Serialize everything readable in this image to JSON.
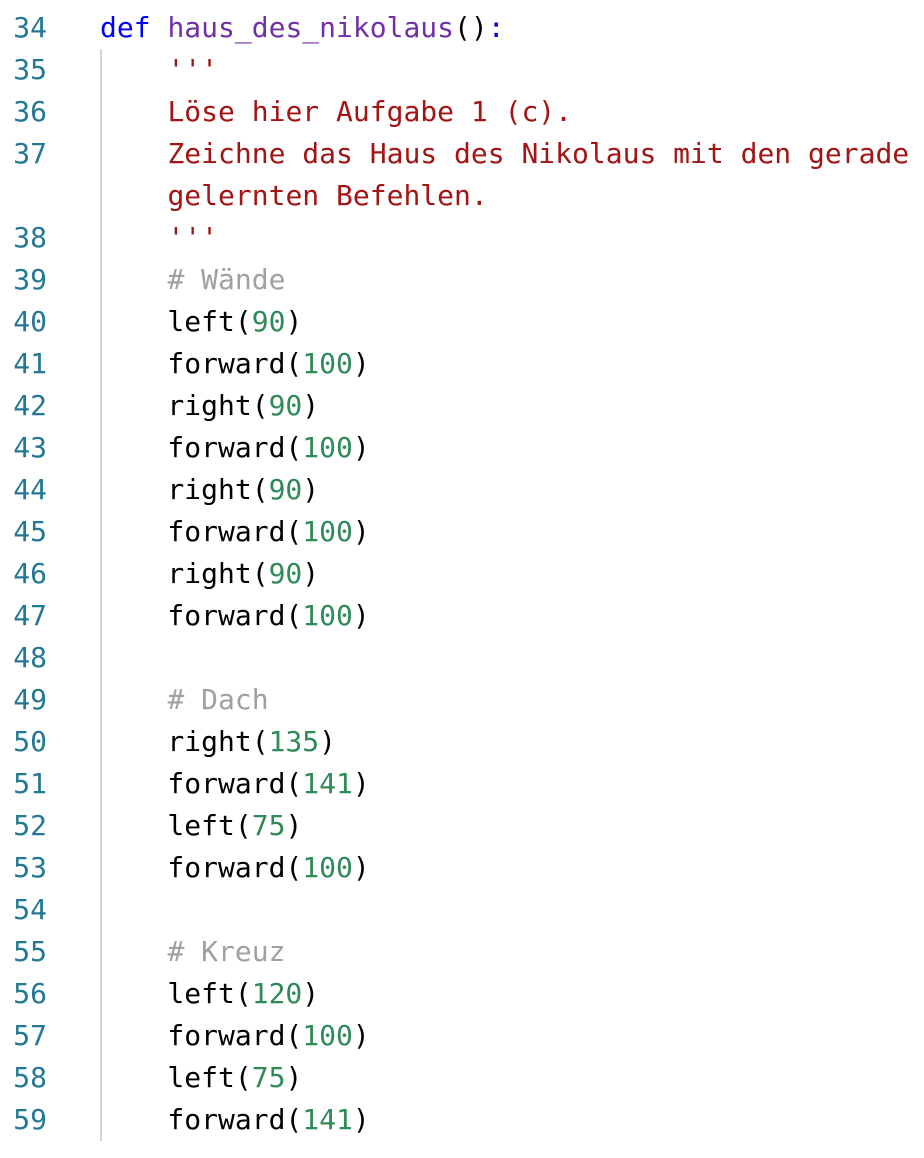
{
  "colors": {
    "keyword": "#0000ff",
    "function": "#7030a8",
    "string": "#a31515",
    "comment": "#a0a0a0",
    "number": "#2e8b57",
    "line_number": "#237893"
  },
  "lines": [
    {
      "num": "34",
      "tokens": [
        [
          "kw",
          "def"
        ],
        [
          "pl",
          " "
        ],
        [
          "fn",
          "haus_des_nikolaus"
        ],
        [
          "pl",
          "()"
        ],
        [
          "kw",
          ":"
        ]
      ]
    },
    {
      "num": "35",
      "tokens": [
        [
          "pl",
          "    "
        ],
        [
          "str",
          "'''"
        ]
      ]
    },
    {
      "num": "36",
      "tokens": [
        [
          "pl",
          "    "
        ],
        [
          "str",
          "Löse hier Aufgabe 1 (c)."
        ]
      ]
    },
    {
      "num": "37",
      "tokens": [
        [
          "pl",
          "    "
        ],
        [
          "str",
          "Zeichne das Haus des Nikolaus mit den gerade"
        ]
      ]
    },
    {
      "num": "",
      "tokens": [
        [
          "pl",
          "    "
        ],
        [
          "str",
          "gelernten Befehlen."
        ]
      ]
    },
    {
      "num": "38",
      "tokens": [
        [
          "pl",
          "    "
        ],
        [
          "str",
          "'''"
        ]
      ]
    },
    {
      "num": "39",
      "tokens": [
        [
          "pl",
          "    "
        ],
        [
          "cm",
          "# Wände"
        ]
      ]
    },
    {
      "num": "40",
      "tokens": [
        [
          "pl",
          "    left("
        ],
        [
          "num",
          "90"
        ],
        [
          "pl",
          ")"
        ]
      ]
    },
    {
      "num": "41",
      "tokens": [
        [
          "pl",
          "    forward("
        ],
        [
          "num",
          "100"
        ],
        [
          "pl",
          ")"
        ]
      ]
    },
    {
      "num": "42",
      "tokens": [
        [
          "pl",
          "    right("
        ],
        [
          "num",
          "90"
        ],
        [
          "pl",
          ")"
        ]
      ]
    },
    {
      "num": "43",
      "tokens": [
        [
          "pl",
          "    forward("
        ],
        [
          "num",
          "100"
        ],
        [
          "pl",
          ")"
        ]
      ]
    },
    {
      "num": "44",
      "tokens": [
        [
          "pl",
          "    right("
        ],
        [
          "num",
          "90"
        ],
        [
          "pl",
          ")"
        ]
      ]
    },
    {
      "num": "45",
      "tokens": [
        [
          "pl",
          "    forward("
        ],
        [
          "num",
          "100"
        ],
        [
          "pl",
          ")"
        ]
      ]
    },
    {
      "num": "46",
      "tokens": [
        [
          "pl",
          "    right("
        ],
        [
          "num",
          "90"
        ],
        [
          "pl",
          ")"
        ]
      ]
    },
    {
      "num": "47",
      "tokens": [
        [
          "pl",
          "    forward("
        ],
        [
          "num",
          "100"
        ],
        [
          "pl",
          ")"
        ]
      ]
    },
    {
      "num": "48",
      "tokens": []
    },
    {
      "num": "49",
      "tokens": [
        [
          "pl",
          "    "
        ],
        [
          "cm",
          "# Dach"
        ]
      ]
    },
    {
      "num": "50",
      "tokens": [
        [
          "pl",
          "    right("
        ],
        [
          "num",
          "135"
        ],
        [
          "pl",
          ")"
        ]
      ]
    },
    {
      "num": "51",
      "tokens": [
        [
          "pl",
          "    forward("
        ],
        [
          "num",
          "141"
        ],
        [
          "pl",
          ")"
        ]
      ]
    },
    {
      "num": "52",
      "tokens": [
        [
          "pl",
          "    left("
        ],
        [
          "num",
          "75"
        ],
        [
          "pl",
          ")"
        ]
      ]
    },
    {
      "num": "53",
      "tokens": [
        [
          "pl",
          "    forward("
        ],
        [
          "num",
          "100"
        ],
        [
          "pl",
          ")"
        ]
      ]
    },
    {
      "num": "54",
      "tokens": []
    },
    {
      "num": "55",
      "tokens": [
        [
          "pl",
          "    "
        ],
        [
          "cm",
          "# Kreuz"
        ]
      ]
    },
    {
      "num": "56",
      "tokens": [
        [
          "pl",
          "    left("
        ],
        [
          "num",
          "120"
        ],
        [
          "pl",
          ")"
        ]
      ]
    },
    {
      "num": "57",
      "tokens": [
        [
          "pl",
          "    forward("
        ],
        [
          "num",
          "100"
        ],
        [
          "pl",
          ")"
        ]
      ]
    },
    {
      "num": "58",
      "tokens": [
        [
          "pl",
          "    left("
        ],
        [
          "num",
          "75"
        ],
        [
          "pl",
          ")"
        ]
      ]
    },
    {
      "num": "59",
      "tokens": [
        [
          "pl",
          "    forward("
        ],
        [
          "num",
          "141"
        ],
        [
          "pl",
          ")"
        ]
      ]
    }
  ]
}
